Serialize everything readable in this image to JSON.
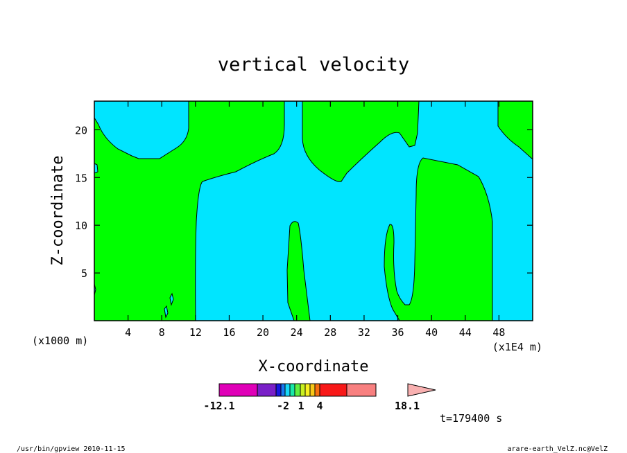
{
  "chart_data": {
    "type": "heatmap",
    "title": "vertical velocity",
    "xlabel": "X-coordinate",
    "ylabel": "Z-coordinate",
    "x_unit_left": "(x1000 m)",
    "x_unit_right": "(x1E4 m)",
    "xlim": [
      0,
      52
    ],
    "ylim": [
      0,
      23
    ],
    "x_ticks": [
      "4",
      "8",
      "12",
      "16",
      "20",
      "24",
      "28",
      "32",
      "36",
      "40",
      "44",
      "48"
    ],
    "x_tick_values": [
      4,
      8,
      12,
      16,
      20,
      24,
      28,
      32,
      36,
      40,
      44,
      48
    ],
    "y_ticks": [
      "5",
      "10",
      "15",
      "20"
    ],
    "y_tick_values": [
      5,
      10,
      15,
      20
    ],
    "colorbar": {
      "labels": [
        "-12.1",
        "-2",
        "1",
        "4",
        "18.1"
      ],
      "colors": [
        "#e000b8",
        "#7a20c8",
        "#1818e0",
        "#1878f0",
        "#18d8f8",
        "#18e8a8",
        "#60f040",
        "#c8f020",
        "#f8f020",
        "#f8c818",
        "#f87010",
        "#f81818",
        "#f88080",
        "#f8b0b0"
      ]
    },
    "fill_colors": {
      "positive": "#00ff00",
      "negative": "#00e5ff"
    },
    "time_label": "t=179400 s"
  },
  "footer": {
    "left": "/usr/bin/gpview  2010-11-15",
    "right": "arare-earth_VelZ.nc@VelZ"
  }
}
